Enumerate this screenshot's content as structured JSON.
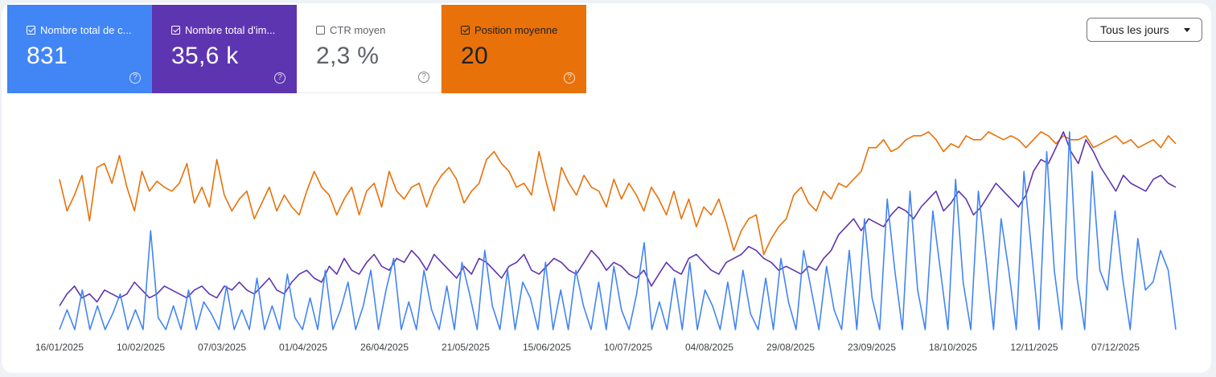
{
  "metrics": [
    {
      "label": "Nombre total de c...",
      "value": "831",
      "checked": true,
      "color": "#4285f4"
    },
    {
      "label": "Nombre total d'im...",
      "value": "35,6 k",
      "checked": true,
      "color": "#5e35b1"
    },
    {
      "label": "CTR moyen",
      "value": "2,3 %",
      "checked": false,
      "color": "#ffffff"
    },
    {
      "label": "Position moyenne",
      "value": "20",
      "checked": true,
      "color": "#e8710a"
    }
  ],
  "range_selector": {
    "label": "Tous les jours"
  },
  "chart_data": {
    "type": "line",
    "x_ticks": [
      "16/01/2025",
      "10/02/2025",
      "07/03/2025",
      "01/04/2025",
      "26/04/2025",
      "21/05/2025",
      "15/06/2025",
      "10/07/2025",
      "04/08/2025",
      "29/08/2025",
      "23/09/2025",
      "18/10/2025",
      "12/11/2025",
      "07/12/2025"
    ],
    "x_range": [
      "16/01/2025",
      "30/12/2025"
    ],
    "grid": false,
    "series": [
      {
        "name": "Position moyenne",
        "color": "#e8710a",
        "values": [
          0.76,
          0.6,
          0.68,
          0.78,
          0.55,
          0.82,
          0.84,
          0.74,
          0.88,
          0.72,
          0.6,
          0.8,
          0.7,
          0.75,
          0.72,
          0.7,
          0.74,
          0.84,
          0.64,
          0.72,
          0.62,
          0.86,
          0.68,
          0.6,
          0.66,
          0.7,
          0.56,
          0.64,
          0.72,
          0.6,
          0.68,
          0.62,
          0.58,
          0.7,
          0.8,
          0.72,
          0.68,
          0.58,
          0.66,
          0.72,
          0.58,
          0.7,
          0.74,
          0.62,
          0.8,
          0.7,
          0.66,
          0.72,
          0.74,
          0.62,
          0.72,
          0.78,
          0.82,
          0.76,
          0.64,
          0.7,
          0.74,
          0.86,
          0.9,
          0.84,
          0.8,
          0.72,
          0.74,
          0.68,
          0.9,
          0.74,
          0.6,
          0.82,
          0.74,
          0.68,
          0.78,
          0.72,
          0.7,
          0.62,
          0.76,
          0.66,
          0.74,
          0.68,
          0.6,
          0.72,
          0.66,
          0.58,
          0.7,
          0.56,
          0.66,
          0.52,
          0.62,
          0.58,
          0.66,
          0.54,
          0.4,
          0.5,
          0.56,
          0.58,
          0.38,
          0.46,
          0.52,
          0.56,
          0.68,
          0.72,
          0.64,
          0.6,
          0.7,
          0.66,
          0.74,
          0.72,
          0.76,
          0.8,
          0.92,
          0.92,
          0.96,
          0.9,
          0.92,
          0.96,
          0.98,
          0.98,
          1.0,
          0.96,
          0.9,
          0.94,
          0.92,
          0.98,
          0.96,
          0.96,
          1.0,
          0.98,
          0.96,
          0.98,
          0.96,
          0.92,
          0.96,
          1.0,
          0.98,
          0.94,
          0.98,
          0.96,
          0.96,
          0.98,
          0.92,
          0.94,
          0.96,
          0.98,
          0.94,
          0.96,
          0.92,
          0.94,
          0.96,
          0.92,
          0.98,
          0.94
        ]
      },
      {
        "name": "Nombre total d'impressions",
        "color": "#5e35b1",
        "values": [
          0.12,
          0.18,
          0.22,
          0.16,
          0.18,
          0.14,
          0.2,
          0.18,
          0.16,
          0.18,
          0.24,
          0.2,
          0.16,
          0.18,
          0.22,
          0.2,
          0.18,
          0.16,
          0.2,
          0.22,
          0.18,
          0.16,
          0.22,
          0.2,
          0.24,
          0.2,
          0.18,
          0.22,
          0.26,
          0.2,
          0.18,
          0.24,
          0.28,
          0.3,
          0.26,
          0.24,
          0.32,
          0.28,
          0.36,
          0.3,
          0.28,
          0.34,
          0.38,
          0.32,
          0.3,
          0.36,
          0.34,
          0.4,
          0.36,
          0.3,
          0.38,
          0.34,
          0.3,
          0.26,
          0.32,
          0.28,
          0.36,
          0.34,
          0.3,
          0.26,
          0.32,
          0.34,
          0.38,
          0.3,
          0.28,
          0.32,
          0.36,
          0.34,
          0.3,
          0.28,
          0.34,
          0.4,
          0.36,
          0.3,
          0.34,
          0.32,
          0.28,
          0.26,
          0.3,
          0.22,
          0.28,
          0.34,
          0.3,
          0.28,
          0.36,
          0.38,
          0.34,
          0.3,
          0.28,
          0.34,
          0.36,
          0.38,
          0.42,
          0.4,
          0.36,
          0.34,
          0.3,
          0.32,
          0.3,
          0.28,
          0.32,
          0.3,
          0.36,
          0.4,
          0.48,
          0.52,
          0.56,
          0.5,
          0.56,
          0.54,
          0.52,
          0.58,
          0.62,
          0.6,
          0.56,
          0.62,
          0.66,
          0.7,
          0.6,
          0.64,
          0.7,
          0.66,
          0.58,
          0.62,
          0.68,
          0.74,
          0.7,
          0.66,
          0.62,
          0.68,
          0.8,
          0.86,
          0.84,
          0.92,
          1.0,
          0.9,
          0.84,
          0.96,
          0.9,
          0.82,
          0.76,
          0.7,
          0.78,
          0.74,
          0.72,
          0.7,
          0.76,
          0.78,
          0.74,
          0.72
        ]
      },
      {
        "name": "Nombre total de clics",
        "color": "#4285f4",
        "values": [
          0.0,
          0.1,
          0.0,
          0.2,
          0.0,
          0.12,
          0.0,
          0.08,
          0.18,
          0.0,
          0.1,
          0.0,
          0.5,
          0.06,
          0.0,
          0.12,
          0.0,
          0.2,
          0.0,
          0.14,
          0.08,
          0.0,
          0.22,
          0.0,
          0.1,
          0.0,
          0.26,
          0.0,
          0.12,
          0.0,
          0.28,
          0.06,
          0.0,
          0.16,
          0.0,
          0.3,
          0.0,
          0.1,
          0.24,
          0.0,
          0.12,
          0.3,
          0.0,
          0.2,
          0.36,
          0.0,
          0.14,
          0.0,
          0.3,
          0.1,
          0.0,
          0.22,
          0.0,
          0.34,
          0.18,
          0.0,
          0.4,
          0.12,
          0.0,
          0.3,
          0.0,
          0.24,
          0.16,
          0.0,
          0.34,
          0.0,
          0.2,
          0.0,
          0.3,
          0.12,
          0.0,
          0.24,
          0.0,
          0.32,
          0.1,
          0.0,
          0.18,
          0.44,
          0.0,
          0.14,
          0.0,
          0.26,
          0.0,
          0.34,
          0.0,
          0.2,
          0.12,
          0.0,
          0.24,
          0.0,
          0.3,
          0.08,
          0.0,
          0.26,
          0.0,
          0.36,
          0.14,
          0.0,
          0.4,
          0.2,
          0.0,
          0.32,
          0.1,
          0.0,
          0.4,
          0.0,
          0.56,
          0.16,
          0.0,
          0.66,
          0.3,
          0.0,
          0.7,
          0.2,
          0.0,
          0.6,
          0.3,
          0.0,
          0.76,
          0.24,
          0.0,
          0.7,
          0.36,
          0.0,
          0.56,
          0.3,
          0.0,
          0.8,
          0.4,
          0.0,
          0.9,
          0.3,
          0.0,
          1.0,
          0.26,
          0.0,
          0.8,
          0.3,
          0.2,
          0.6,
          0.26,
          0.0,
          0.46,
          0.2,
          0.24,
          0.4,
          0.3,
          0.0
        ]
      }
    ]
  }
}
